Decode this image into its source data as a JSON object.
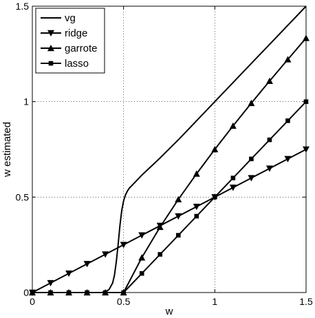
{
  "chart_data": {
    "type": "line",
    "title": "",
    "xlabel": "w",
    "ylabel": "w estimated",
    "xlim": [
      0,
      1.5
    ],
    "ylim": [
      0,
      1.5
    ],
    "grid": true,
    "grid_style": "dotted",
    "legend_position": "top-left",
    "x_ticks": [
      {
        "value": 0,
        "label": "0"
      },
      {
        "value": 0.5,
        "label": "0.5"
      },
      {
        "value": 1,
        "label": "1"
      },
      {
        "value": 1.5,
        "label": "1.5"
      }
    ],
    "y_ticks": [
      {
        "value": 0,
        "label": "0"
      },
      {
        "value": 0.5,
        "label": "0.5"
      },
      {
        "value": 1,
        "label": "1"
      },
      {
        "value": 1.5,
        "label": "1.5"
      }
    ],
    "x": [
      0,
      0.1,
      0.2,
      0.3,
      0.4,
      0.5,
      0.6,
      0.7,
      0.8,
      0.9,
      1.0,
      1.1,
      1.2,
      1.3,
      1.4,
      1.5
    ],
    "series": [
      {
        "name": "vg",
        "marker": "none",
        "color": "#000000",
        "x": [
          0,
          0.38,
          0.4,
          0.42,
          0.44,
          0.45,
          0.46,
          0.47,
          0.48,
          0.49,
          0.5,
          0.51,
          0.52,
          0.53,
          0.55,
          0.57,
          0.6,
          0.65,
          0.7,
          0.8,
          1.0,
          1.2,
          1.5
        ],
        "values": [
          0,
          0.0,
          0.005,
          0.015,
          0.05,
          0.09,
          0.16,
          0.25,
          0.35,
          0.43,
          0.48,
          0.51,
          0.53,
          0.545,
          0.565,
          0.585,
          0.615,
          0.66,
          0.705,
          0.8,
          1.0,
          1.2,
          1.5
        ]
      },
      {
        "name": "ridge",
        "marker": "triangle-down",
        "color": "#000000",
        "x": [
          0,
          0.1,
          0.2,
          0.3,
          0.4,
          0.5,
          0.6,
          0.7,
          0.8,
          0.9,
          1.0,
          1.1,
          1.2,
          1.3,
          1.4,
          1.5
        ],
        "values": [
          0,
          0.05,
          0.1,
          0.15,
          0.2,
          0.25,
          0.3,
          0.35,
          0.4,
          0.45,
          0.5,
          0.55,
          0.6,
          0.65,
          0.7,
          0.75
        ]
      },
      {
        "name": "garrote",
        "marker": "triangle-up",
        "color": "#000000",
        "x": [
          0,
          0.1,
          0.2,
          0.3,
          0.4,
          0.5,
          0.6,
          0.7,
          0.8,
          0.9,
          1.0,
          1.1,
          1.2,
          1.3,
          1.4,
          1.5
        ],
        "values": [
          0,
          0,
          0,
          0,
          0,
          0,
          0.183,
          0.343,
          0.488,
          0.622,
          0.75,
          0.873,
          0.992,
          1.108,
          1.221,
          1.333
        ]
      },
      {
        "name": "lasso",
        "marker": "square",
        "color": "#000000",
        "x": [
          0,
          0.1,
          0.2,
          0.3,
          0.4,
          0.5,
          0.6,
          0.7,
          0.8,
          0.9,
          1.0,
          1.1,
          1.2,
          1.3,
          1.4,
          1.5
        ],
        "values": [
          0,
          0,
          0,
          0,
          0,
          0,
          0.1,
          0.2,
          0.3,
          0.4,
          0.5,
          0.6,
          0.7,
          0.8,
          0.9,
          1.0
        ]
      }
    ]
  }
}
